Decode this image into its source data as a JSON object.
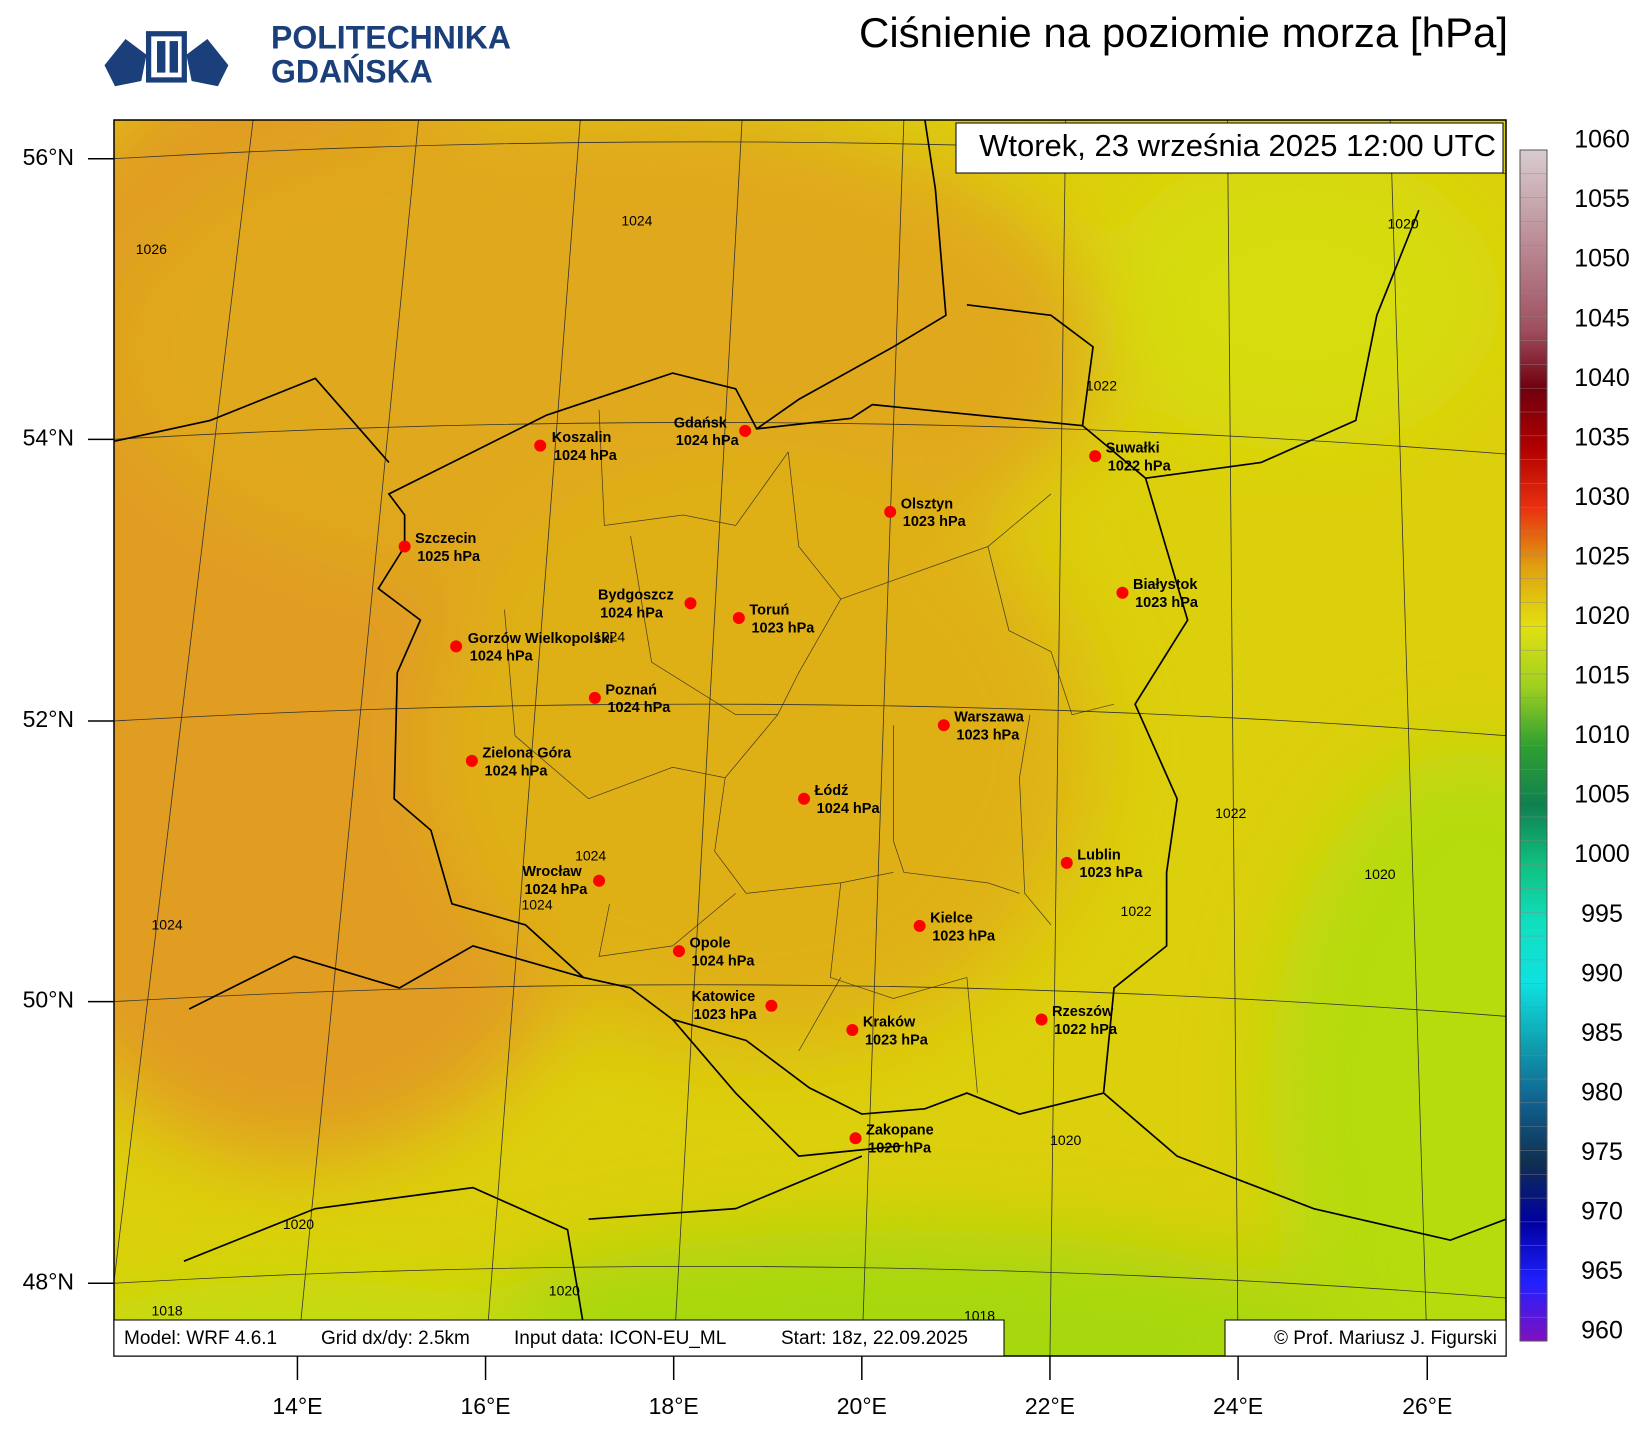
{
  "logo": {
    "line1": "POLITECHNIKA",
    "line2": "GDAŃSKA"
  },
  "title": "Ciśnienie na poziomie morza [hPa]",
  "date": "Wtorek, 23 września 2025 12:00 UTC",
  "footer": {
    "model": "Model: WRF 4.6.1",
    "grid": "Grid dx/dy: 2.5km",
    "input": "Input data: ICON-EU_ML",
    "start": "Start: 18z, 22.09.2025",
    "author": "© Prof. Mariusz J. Figurski"
  },
  "cities": [
    {
      "name": "Koszalin",
      "pressure": "1024 hPa"
    },
    {
      "name": "Gdańsk",
      "pressure": "1024 hPa"
    },
    {
      "name": "Suwałki",
      "pressure": "1022 hPa"
    },
    {
      "name": "Olsztyn",
      "pressure": "1023 hPa"
    },
    {
      "name": "Szczecin",
      "pressure": "1025 hPa"
    },
    {
      "name": "Białystok",
      "pressure": "1023 hPa"
    },
    {
      "name": "Bydgoszcz",
      "pressure": "1024 hPa"
    },
    {
      "name": "Toruń",
      "pressure": "1023 hPa"
    },
    {
      "name": "Gorzów Wielkopolski",
      "pressure": "1024 hPa"
    },
    {
      "name": "Poznań",
      "pressure": "1024 hPa"
    },
    {
      "name": "Warszawa",
      "pressure": "1023 hPa"
    },
    {
      "name": "Zielona Góra",
      "pressure": "1024 hPa"
    },
    {
      "name": "Łódź",
      "pressure": "1024 hPa"
    },
    {
      "name": "Lublin",
      "pressure": "1023 hPa"
    },
    {
      "name": "Wrocław",
      "pressure": "1024 hPa"
    },
    {
      "name": "Kielce",
      "pressure": "1023 hPa"
    },
    {
      "name": "Opole",
      "pressure": "1024 hPa"
    },
    {
      "name": "Katowice",
      "pressure": "1023 hPa"
    },
    {
      "name": "Rzeszów",
      "pressure": "1022 hPa"
    },
    {
      "name": "Kraków",
      "pressure": "1023 hPa"
    },
    {
      "name": "Zakopane",
      "pressure": "1020 hPa"
    }
  ],
  "contour_labels": [
    1024,
    1026,
    1020,
    1022,
    1024,
    1024,
    1024,
    1024,
    1022,
    1020,
    1022,
    1020,
    1020,
    1020,
    1018,
    1018
  ],
  "colorbar": {
    "ticks": [
      1060,
      1055,
      1050,
      1045,
      1040,
      1035,
      1030,
      1025,
      1020,
      1015,
      1010,
      1005,
      1000,
      995,
      990,
      985,
      980,
      975,
      970,
      965,
      960
    ]
  },
  "lat_labels": [
    "56°N",
    "54°N",
    "52°N",
    "50°N",
    "48°N"
  ],
  "lon_labels": [
    "14°E",
    "16°E",
    "18°E",
    "20°E",
    "22°E",
    "24°E",
    "26°E"
  ]
}
